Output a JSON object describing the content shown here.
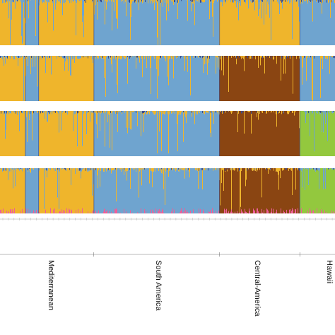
{
  "chart_data": {
    "type": "bar",
    "subtype": "stacked-admixture",
    "title": "",
    "xlabel": "",
    "ylabel": "",
    "ylim": [
      0,
      1
    ],
    "grid": false,
    "legend": "none",
    "cluster_colors": {
      "orange": "#EFB52C",
      "blue": "#6FA4CF",
      "brown": "#8A4512",
      "green": "#93C83E",
      "pink": "#EE5E98",
      "navy": "#3B4D8E",
      "gray": "#8C96A8"
    },
    "regions": [
      {
        "name": "Mediterranean",
        "start": 0.0,
        "end": 0.28
      },
      {
        "name": "South America",
        "start": 0.28,
        "end": 0.655
      },
      {
        "name": "Central-America",
        "start": 0.655,
        "end": 0.895
      },
      {
        "name": "Hawaii",
        "start": 0.895,
        "end": 1.0
      }
    ],
    "panels": [
      {
        "K": 2,
        "segments": [
          {
            "start": 0.0,
            "end": 0.075,
            "cluster": "orange",
            "noise": "blue"
          },
          {
            "start": 0.075,
            "end": 0.115,
            "cluster": "blue",
            "noise": "orange"
          },
          {
            "start": 0.115,
            "end": 0.28,
            "cluster": "orange",
            "noise": "blue"
          },
          {
            "start": 0.28,
            "end": 0.655,
            "cluster": "blue",
            "noise": "orange"
          },
          {
            "start": 0.655,
            "end": 0.895,
            "cluster": "orange",
            "noise": "blue"
          },
          {
            "start": 0.895,
            "end": 1.0,
            "cluster": "blue",
            "noise": "orange"
          }
        ]
      },
      {
        "K": 3,
        "segments": [
          {
            "start": 0.0,
            "end": 0.075,
            "cluster": "orange",
            "noise": "blue"
          },
          {
            "start": 0.075,
            "end": 0.115,
            "cluster": "blue",
            "noise": "orange"
          },
          {
            "start": 0.115,
            "end": 0.28,
            "cluster": "orange",
            "noise": "blue"
          },
          {
            "start": 0.28,
            "end": 0.655,
            "cluster": "blue",
            "noise": "orange"
          },
          {
            "start": 0.655,
            "end": 0.895,
            "cluster": "brown",
            "noise": "orange"
          },
          {
            "start": 0.895,
            "end": 1.0,
            "cluster": "blue",
            "noise": "orange"
          }
        ]
      },
      {
        "K": 4,
        "segments": [
          {
            "start": 0.0,
            "end": 0.075,
            "cluster": "orange",
            "noise": "blue"
          },
          {
            "start": 0.075,
            "end": 0.115,
            "cluster": "blue",
            "noise": "orange"
          },
          {
            "start": 0.115,
            "end": 0.28,
            "cluster": "orange",
            "noise": "blue"
          },
          {
            "start": 0.28,
            "end": 0.655,
            "cluster": "blue",
            "noise": "orange"
          },
          {
            "start": 0.655,
            "end": 0.895,
            "cluster": "brown",
            "noise": "orange"
          },
          {
            "start": 0.895,
            "end": 1.0,
            "cluster": "green",
            "noise": "blue"
          }
        ]
      },
      {
        "K": 5,
        "segments": [
          {
            "start": 0.0,
            "end": 0.075,
            "cluster": "orange",
            "noise": "blue"
          },
          {
            "start": 0.075,
            "end": 0.115,
            "cluster": "blue",
            "noise": "orange"
          },
          {
            "start": 0.115,
            "end": 0.28,
            "cluster": "orange",
            "noise": "blue"
          },
          {
            "start": 0.28,
            "end": 0.655,
            "cluster": "blue",
            "noise": "orange"
          },
          {
            "start": 0.655,
            "end": 0.895,
            "cluster": "brown",
            "noise": "orange"
          },
          {
            "start": 0.895,
            "end": 1.0,
            "cluster": "green",
            "noise": "blue"
          }
        ],
        "bottom_cluster": "pink"
      }
    ]
  }
}
